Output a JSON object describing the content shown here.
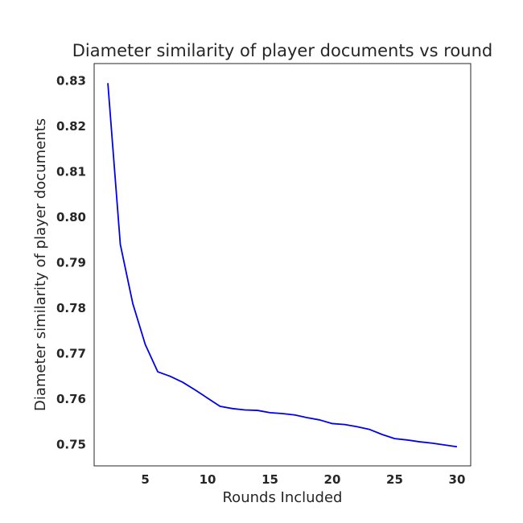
{
  "chart_data": {
    "type": "line",
    "title": "Diameter similarity of player documents vs round",
    "xlabel": "Rounds Included",
    "ylabel": "Diameter similarity of player documents",
    "xlim": [
      0.9,
      31.1
    ],
    "ylim": [
      0.7453,
      0.8338
    ],
    "xticks": [
      5,
      10,
      15,
      20,
      25,
      30
    ],
    "yticks": [
      0.75,
      0.76,
      0.77,
      0.78,
      0.79,
      0.8,
      0.81,
      0.82,
      0.83
    ],
    "ytick_labels": [
      "0.75",
      "0.76",
      "0.77",
      "0.78",
      "0.79",
      "0.80",
      "0.81",
      "0.82",
      "0.83"
    ],
    "grid": false,
    "series": [
      {
        "color": "#0000ee",
        "x": [
          2,
          3,
          4,
          5,
          6,
          7,
          8,
          9,
          10,
          11,
          12,
          13,
          14,
          15,
          16,
          17,
          18,
          19,
          20,
          21,
          22,
          23,
          24,
          25,
          26,
          27,
          28,
          29,
          30
        ],
        "y": [
          0.8295,
          0.794,
          0.781,
          0.772,
          0.766,
          0.765,
          0.7637,
          0.762,
          0.7602,
          0.7584,
          0.7579,
          0.7576,
          0.7575,
          0.757,
          0.7568,
          0.7565,
          0.7559,
          0.7554,
          0.7546,
          0.7544,
          0.7539,
          0.7533,
          0.7522,
          0.7513,
          0.751,
          0.7506,
          0.7503,
          0.7499,
          0.7495
        ]
      }
    ]
  }
}
